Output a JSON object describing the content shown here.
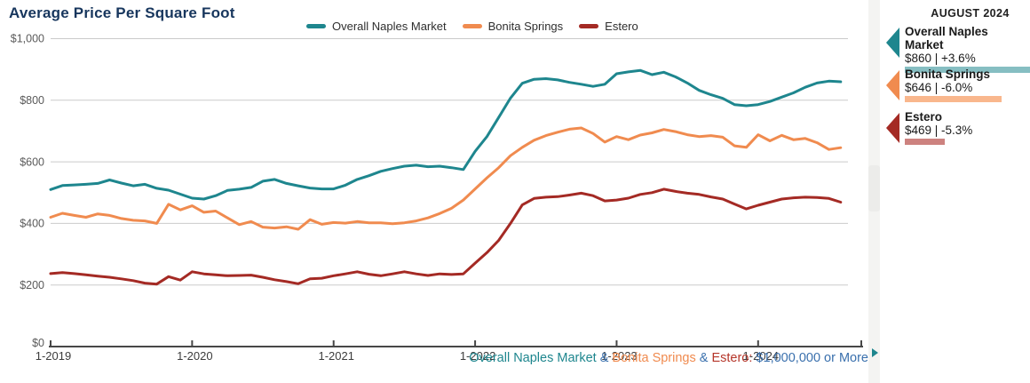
{
  "title": "Average Price Per Square Foot",
  "chart_data": {
    "type": "line",
    "title": "Average Price Per Square Foot",
    "x_unit": "month",
    "x_start": "2019-01",
    "x_end": "2024-08",
    "x_tick_labels": [
      "1-2019",
      "1-2020",
      "1-2021",
      "1-2022",
      "1-2023",
      "1-2024"
    ],
    "y_ticks": [
      0,
      200,
      400,
      600,
      800,
      1000
    ],
    "y_tick_labels": [
      "$0",
      "$200",
      "$400",
      "$600",
      "$800",
      "$1,000"
    ],
    "ylim": [
      0,
      1000
    ],
    "grid": "horizontal",
    "legend_position": "top",
    "series": [
      {
        "name": "Overall Naples Market",
        "color": "#1e868e",
        "values": [
          510,
          523,
          525,
          527,
          530,
          541,
          531,
          522,
          527,
          514,
          508,
          495,
          482,
          479,
          490,
          507,
          511,
          517,
          537,
          543,
          530,
          522,
          515,
          512,
          512,
          524,
          543,
          555,
          569,
          578,
          586,
          589,
          584,
          586,
          581,
          575,
          634,
          682,
          744,
          807,
          855,
          868,
          870,
          866,
          858,
          852,
          845,
          852,
          886,
          892,
          897,
          883,
          891,
          876,
          856,
          832,
          818,
          806,
          786,
          782,
          786,
          796,
          810,
          824,
          842,
          856,
          862,
          860
        ]
      },
      {
        "name": "Bonita Springs",
        "color": "#f08b4f",
        "values": [
          420,
          433,
          426,
          420,
          431,
          426,
          416,
          410,
          408,
          400,
          462,
          444,
          457,
          436,
          440,
          418,
          396,
          406,
          388,
          385,
          389,
          381,
          412,
          397,
          403,
          401,
          406,
          402,
          402,
          399,
          402,
          408,
          418,
          432,
          449,
          476,
          512,
          548,
          581,
          620,
          647,
          670,
          685,
          696,
          706,
          710,
          692,
          664,
          682,
          672,
          687,
          694,
          705,
          698,
          688,
          682,
          685,
          680,
          652,
          647,
          688,
          668,
          686,
          672,
          676,
          662,
          640,
          646
        ]
      },
      {
        "name": "Estero",
        "color": "#a42a24",
        "values": [
          237,
          240,
          237,
          233,
          229,
          225,
          220,
          214,
          206,
          203,
          227,
          216,
          243,
          236,
          233,
          230,
          231,
          232,
          225,
          217,
          211,
          204,
          220,
          222,
          230,
          236,
          243,
          235,
          230,
          236,
          243,
          236,
          231,
          236,
          234,
          236,
          271,
          305,
          345,
          400,
          460,
          481,
          485,
          487,
          492,
          498,
          490,
          473,
          476,
          482,
          494,
          500,
          511,
          504,
          498,
          494,
          486,
          479,
          463,
          447,
          459,
          469,
          479,
          483,
          485,
          484,
          481,
          469
        ]
      }
    ]
  },
  "caption": {
    "segments": [
      {
        "text": "Overall Naples Market",
        "color": "#1e868e"
      },
      {
        "text": " & ",
        "color": "#3a70ad"
      },
      {
        "text": "Bonita Springs",
        "color": "#f08b4f"
      },
      {
        "text": " & ",
        "color": "#3a70ad"
      },
      {
        "text": "Estero:",
        "color": "#b5362a"
      },
      {
        "text": " $1,000,000 or More",
        "color": "#3a70ad"
      }
    ]
  },
  "sidebar": {
    "month_label": "AUGUST 2024",
    "stats": [
      {
        "title": "Overall Naples Market",
        "value_line": "$860 | +3.6%",
        "arrow_color": "#1e868e",
        "bar_color": "#86bec2",
        "bar_pct": 100
      },
      {
        "title": "Bonita Springs",
        "value_line": "$646 | -6.0%",
        "arrow_color": "#f08b4f",
        "bar_color": "#f9b78d",
        "bar_pct": 67
      },
      {
        "title": "Estero",
        "value_line": "$469 | -5.3%",
        "arrow_color": "#a42a24",
        "bar_color": "#cd827f",
        "bar_pct": 28
      }
    ],
    "expander_icon_color": "#1e868e"
  },
  "colors": {
    "title": "#17365d",
    "axis_line": "#474747",
    "gridline": "#cbcbcb",
    "x_tick_text": "#3c3c3c",
    "y_tick_text": "#5a5a5a"
  }
}
